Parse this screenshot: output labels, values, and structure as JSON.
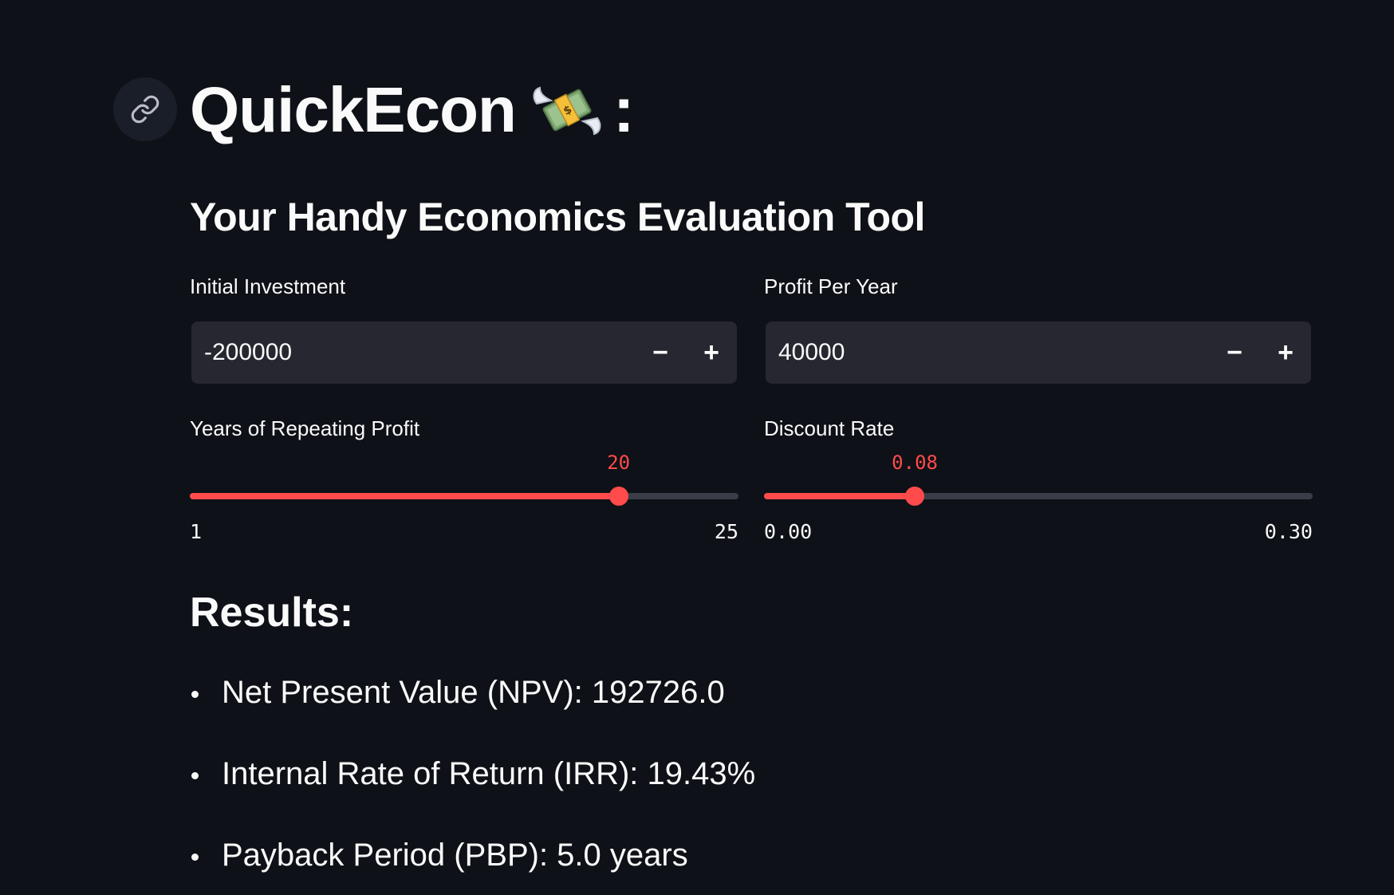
{
  "header": {
    "title": "QuickEcon",
    "title_suffix": ":",
    "emoji": "money-with-wings-icon",
    "subtitle": "Your Handy Economics Evaluation Tool"
  },
  "inputs": {
    "initial_investment": {
      "label": "Initial Investment",
      "value": "-200000",
      "minus": "−",
      "plus": "+"
    },
    "profit_per_year": {
      "label": "Profit Per Year",
      "value": "40000",
      "minus": "−",
      "plus": "+"
    }
  },
  "sliders": {
    "years": {
      "label": "Years of Repeating Profit",
      "value": 20,
      "value_label": "20",
      "min": 1,
      "max": 25,
      "min_label": "1",
      "max_label": "25"
    },
    "discount_rate": {
      "label": "Discount Rate",
      "value": 0.08,
      "value_label": "0.08",
      "min": 0,
      "max": 0.3,
      "min_label": "0.00",
      "max_label": "0.30"
    }
  },
  "results": {
    "title": "Results:",
    "items": [
      "Net Present Value (NPV): 192726.0",
      "Internal Rate of Return (IRR): 19.43%",
      "Payback Period (PBP): 5.0 years"
    ]
  },
  "colors": {
    "background": "#0e1117",
    "accent": "#ff4b4b",
    "input_bg": "#262730",
    "text": "#fafafa"
  }
}
